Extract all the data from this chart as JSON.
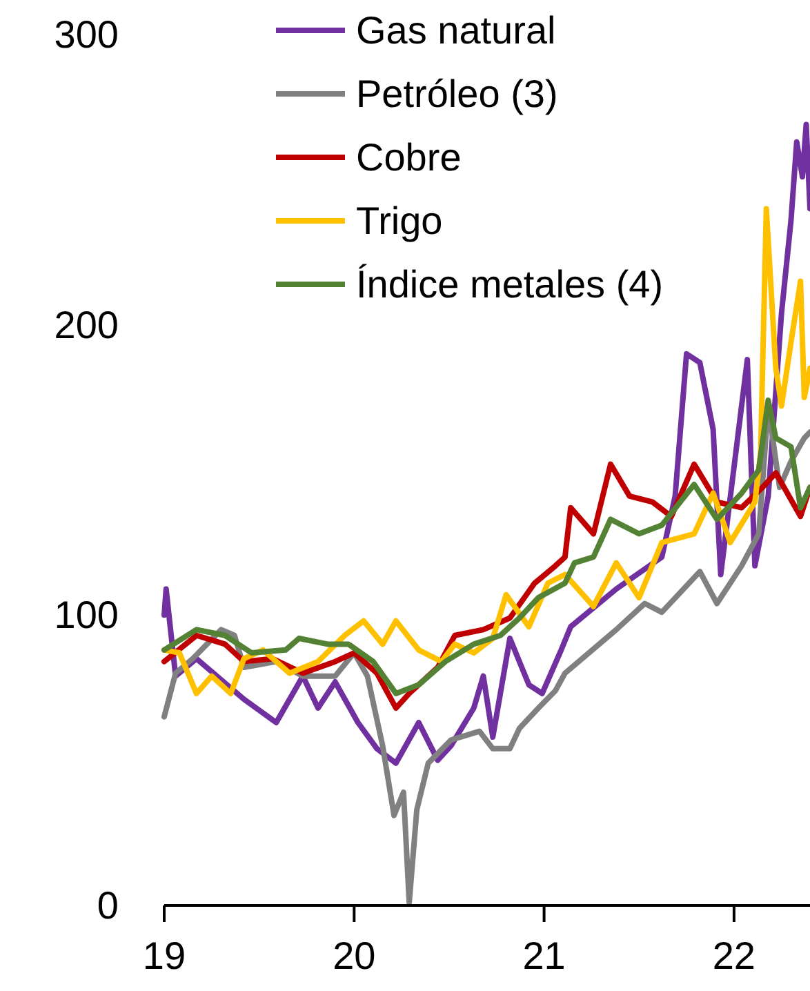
{
  "chart_data": {
    "type": "line",
    "xlim": [
      19,
      22.4
    ],
    "xticks": [
      19,
      20,
      21,
      22
    ],
    "ylim": [
      0,
      300
    ],
    "yticks": [
      0,
      100,
      200,
      300
    ],
    "grid": false,
    "legend": "top",
    "marker": "none",
    "line_style": "solid",
    "series": [
      {
        "name": "Gas natural",
        "color": "#7030a0",
        "x": [
          19.0,
          19.01,
          19.06,
          19.17,
          19.42,
          19.59,
          19.73,
          19.81,
          19.9,
          20.02,
          20.12,
          20.22,
          20.34,
          20.44,
          20.51,
          20.63,
          20.68,
          20.73,
          20.82,
          20.92,
          20.99,
          21.09,
          21.14,
          21.38,
          21.62,
          21.69,
          21.75,
          21.82,
          21.89,
          21.93,
          22.07,
          22.11,
          22.18,
          22.25,
          22.3,
          22.33,
          22.36,
          22.38,
          22.4
        ],
        "values": [
          100,
          109,
          79,
          85,
          71,
          63,
          79,
          68,
          77,
          63,
          54,
          49,
          63,
          50,
          55,
          68,
          79,
          58,
          92,
          76,
          73,
          88,
          96,
          109,
          120,
          141,
          190,
          187,
          164,
          114,
          188,
          117,
          141,
          204,
          236,
          263,
          251,
          269,
          240
        ]
      },
      {
        "name": "Petróleo (3)",
        "color": "#808080",
        "x": [
          19.0,
          19.06,
          19.15,
          19.3,
          19.37,
          19.42,
          19.59,
          19.73,
          19.9,
          20.0,
          20.07,
          20.15,
          20.21,
          20.26,
          20.29,
          20.33,
          20.39,
          20.51,
          20.66,
          20.73,
          20.82,
          20.87,
          20.97,
          21.06,
          21.11,
          21.38,
          21.53,
          21.62,
          21.82,
          21.91,
          22.04,
          22.13,
          22.18,
          22.24,
          22.3,
          22.37,
          22.4
        ],
        "values": [
          65,
          80,
          85,
          95,
          93,
          82,
          84,
          79,
          79,
          87,
          79,
          55,
          31,
          39,
          1,
          33,
          49,
          57,
          60,
          54,
          54,
          61,
          68,
          74,
          80,
          95,
          104,
          101,
          115,
          104,
          117,
          128,
          172,
          144,
          153,
          161,
          163
        ]
      },
      {
        "name": "Cobre",
        "color": "#c00000",
        "x": [
          19.0,
          19.17,
          19.32,
          19.42,
          19.57,
          19.73,
          19.9,
          20.0,
          20.12,
          20.22,
          20.29,
          20.44,
          20.53,
          20.68,
          20.82,
          20.95,
          21.06,
          21.11,
          21.14,
          21.26,
          21.35,
          21.45,
          21.57,
          21.67,
          21.79,
          21.91,
          22.04,
          22.15,
          22.22,
          22.35,
          22.4
        ],
        "values": [
          84,
          93,
          90,
          84,
          85,
          80,
          84,
          87,
          80,
          68,
          73,
          82,
          93,
          95,
          99,
          111,
          117,
          120,
          137,
          128,
          152,
          141,
          139,
          134,
          152,
          139,
          137,
          144,
          149,
          134,
          144
        ]
      },
      {
        "name": "Trigo",
        "color": "#ffc000",
        "x": [
          19.0,
          19.08,
          19.17,
          19.25,
          19.35,
          19.42,
          19.52,
          19.66,
          19.81,
          19.95,
          20.05,
          20.15,
          20.22,
          20.34,
          20.46,
          20.53,
          20.63,
          20.73,
          20.8,
          20.92,
          21.02,
          21.11,
          21.26,
          21.38,
          21.5,
          21.62,
          21.79,
          21.89,
          21.98,
          22.11,
          22.14,
          22.17,
          22.22,
          22.25,
          22.3,
          22.35,
          22.37,
          22.4
        ],
        "values": [
          88,
          87,
          73,
          79,
          73,
          85,
          88,
          80,
          84,
          93,
          98,
          90,
          98,
          88,
          84,
          90,
          87,
          92,
          107,
          96,
          111,
          114,
          103,
          118,
          106,
          125,
          128,
          142,
          125,
          139,
          156,
          240,
          185,
          172,
          194,
          215,
          175,
          185
        ]
      },
      {
        "name": "Índice metales (4)",
        "color": "#548235",
        "x": [
          19.0,
          19.17,
          19.32,
          19.46,
          19.64,
          19.71,
          19.86,
          19.97,
          20.1,
          20.22,
          20.34,
          20.48,
          20.63,
          20.77,
          20.87,
          20.97,
          21.11,
          21.16,
          21.26,
          21.35,
          21.5,
          21.62,
          21.79,
          21.91,
          22.04,
          22.13,
          22.18,
          22.22,
          22.3,
          22.35,
          22.4
        ],
        "values": [
          88,
          95,
          93,
          87,
          88,
          92,
          90,
          90,
          84,
          73,
          76,
          84,
          90,
          93,
          99,
          106,
          111,
          118,
          120,
          133,
          128,
          131,
          145,
          133,
          142,
          150,
          174,
          161,
          158,
          137,
          144
        ]
      }
    ]
  }
}
